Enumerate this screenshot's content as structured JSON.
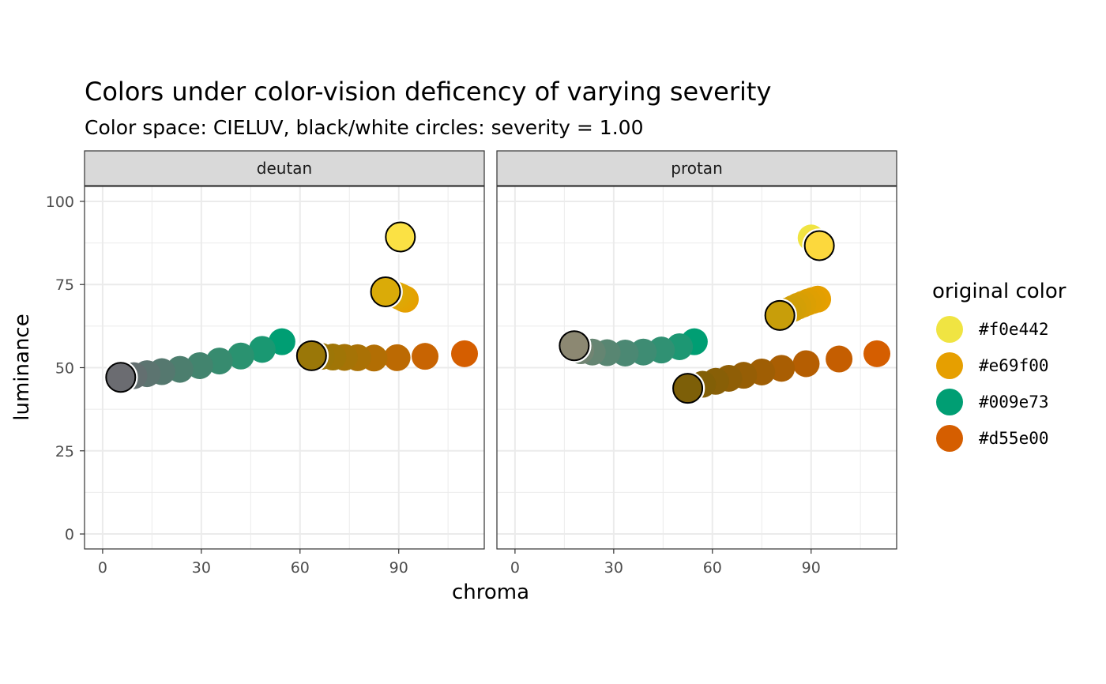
{
  "chart_data": {
    "type": "scatter",
    "title": "Colors under color-vision deficency of varying severity",
    "subtitle": "Color space: CIELUV, black/white circles: severity = 1.00",
    "xlabel": "chroma",
    "ylabel": "luminance",
    "xlim": [
      -5.5,
      116
    ],
    "ylim": [
      -4.5,
      104.5
    ],
    "x_ticks": [
      "0",
      "30",
      "60",
      "90"
    ],
    "y_ticks": [
      "0",
      "25",
      "50",
      "75",
      "100"
    ],
    "grid": true,
    "legend": {
      "title": "original color",
      "position": "right",
      "entries": [
        {
          "label": "#f0e442",
          "color": "#f0e442"
        },
        {
          "label": "#e69f00",
          "color": "#e69f00"
        },
        {
          "label": "#009e73",
          "color": "#009e73"
        },
        {
          "label": "#d55e00",
          "color": "#d55e00"
        }
      ]
    },
    "panels": [
      {
        "name": "deutan",
        "series": [
          {
            "original": "#f0e442",
            "marked": {
              "x": 90.5,
              "y": 89.3,
              "color": "#fbe144"
            },
            "points": [
              {
                "x": 90.5,
                "y": 89.3,
                "color": "#fbe144"
              }
            ]
          },
          {
            "original": "#e69f00",
            "marked": {
              "x": 86,
              "y": 72.8,
              "color": "#daab08"
            },
            "points": [
              {
                "x": 92,
                "y": 70.6,
                "color": "#e69f00"
              },
              {
                "x": 91.5,
                "y": 70.8,
                "color": "#e5a101"
              },
              {
                "x": 91,
                "y": 71.1,
                "color": "#e3a302"
              },
              {
                "x": 90.3,
                "y": 71.4,
                "color": "#e2a403"
              },
              {
                "x": 89.6,
                "y": 71.7,
                "color": "#e0a604"
              },
              {
                "x": 88.8,
                "y": 72.0,
                "color": "#dfa705"
              },
              {
                "x": 88.0,
                "y": 72.3,
                "color": "#dea806"
              },
              {
                "x": 87.0,
                "y": 72.6,
                "color": "#dca907"
              },
              {
                "x": 86,
                "y": 72.8,
                "color": "#daab08"
              }
            ]
          },
          {
            "original": "#009e73",
            "marked": {
              "x": 5.5,
              "y": 47.1,
              "color": "#6b6c71"
            },
            "points": [
              {
                "x": 54.5,
                "y": 57.8,
                "color": "#009e73"
              },
              {
                "x": 48.5,
                "y": 55.5,
                "color": "#1a9872"
              },
              {
                "x": 42.0,
                "y": 53.5,
                "color": "#2a9270"
              },
              {
                "x": 35.5,
                "y": 52.0,
                "color": "#378b6f"
              },
              {
                "x": 29.5,
                "y": 50.6,
                "color": "#42846e"
              },
              {
                "x": 23.5,
                "y": 49.5,
                "color": "#4c7e6e"
              },
              {
                "x": 18.0,
                "y": 48.8,
                "color": "#55786f"
              },
              {
                "x": 13.5,
                "y": 48.2,
                "color": "#5c7470"
              },
              {
                "x": 9.5,
                "y": 47.6,
                "color": "#636f70"
              },
              {
                "x": 5.5,
                "y": 47.1,
                "color": "#6b6c71"
              }
            ]
          },
          {
            "original": "#d55e00",
            "marked": {
              "x": 63.5,
              "y": 53.6,
              "color": "#9a7708"
            },
            "points": [
              {
                "x": 110,
                "y": 54.2,
                "color": "#d55e00"
              },
              {
                "x": 98,
                "y": 53.4,
                "color": "#c86402"
              },
              {
                "x": 89.5,
                "y": 53.0,
                "color": "#bc6a03"
              },
              {
                "x": 82.5,
                "y": 52.9,
                "color": "#b26e04"
              },
              {
                "x": 77.5,
                "y": 53.0,
                "color": "#aa7105"
              },
              {
                "x": 73.5,
                "y": 53.1,
                "color": "#a57306"
              },
              {
                "x": 70.0,
                "y": 53.2,
                "color": "#a07506"
              },
              {
                "x": 66.5,
                "y": 53.4,
                "color": "#9d7607"
              },
              {
                "x": 63.5,
                "y": 53.6,
                "color": "#9a7708"
              }
            ]
          }
        ]
      },
      {
        "name": "protan",
        "series": [
          {
            "original": "#f0e442",
            "marked": {
              "x": 92.5,
              "y": 86.7,
              "color": "#fcd83d"
            },
            "points": [
              {
                "x": 90,
                "y": 89.0,
                "color": "#f0e442"
              },
              {
                "x": 91.3,
                "y": 87.8,
                "color": "#f6de40"
              },
              {
                "x": 92.5,
                "y": 86.7,
                "color": "#fcd83d"
              }
            ]
          },
          {
            "original": "#e69f00",
            "marked": {
              "x": 80.5,
              "y": 65.7,
              "color": "#c89e0a"
            },
            "points": [
              {
                "x": 92,
                "y": 70.6,
                "color": "#e69f00"
              },
              {
                "x": 90.5,
                "y": 70.2,
                "color": "#e29f01"
              },
              {
                "x": 89,
                "y": 69.7,
                "color": "#df9f02"
              },
              {
                "x": 87.5,
                "y": 69.1,
                "color": "#db9f03"
              },
              {
                "x": 86,
                "y": 68.5,
                "color": "#d79f05"
              },
              {
                "x": 84.5,
                "y": 67.8,
                "color": "#d39f06"
              },
              {
                "x": 83,
                "y": 67.1,
                "color": "#d09f07"
              },
              {
                "x": 81.7,
                "y": 66.4,
                "color": "#cc9e09"
              },
              {
                "x": 80.5,
                "y": 65.7,
                "color": "#c89e0a"
              }
            ]
          },
          {
            "original": "#009e73",
            "marked": {
              "x": 18,
              "y": 56.6,
              "color": "#8c8872"
            },
            "points": [
              {
                "x": 54.5,
                "y": 57.8,
                "color": "#009e73"
              },
              {
                "x": 50,
                "y": 56.3,
                "color": "#1d9773"
              },
              {
                "x": 44.5,
                "y": 55.3,
                "color": "#309173"
              },
              {
                "x": 39,
                "y": 54.7,
                "color": "#3e8c73"
              },
              {
                "x": 33.5,
                "y": 54.4,
                "color": "#4b8873"
              },
              {
                "x": 28,
                "y": 54.5,
                "color": "#588672"
              },
              {
                "x": 23.5,
                "y": 54.7,
                "color": "#658572"
              },
              {
                "x": 20,
                "y": 55.1,
                "color": "#718472"
              },
              {
                "x": 17.5,
                "y": 55.6,
                "color": "#7c8572"
              },
              {
                "x": 18,
                "y": 56.6,
                "color": "#8c8872"
              }
            ]
          },
          {
            "original": "#d55e00",
            "marked": {
              "x": 52.5,
              "y": 43.8,
              "color": "#7d5f08"
            },
            "points": [
              {
                "x": 110,
                "y": 54.2,
                "color": "#d55e00"
              },
              {
                "x": 98.5,
                "y": 52.6,
                "color": "#c55e01"
              },
              {
                "x": 88.5,
                "y": 51.2,
                "color": "#b55e02"
              },
              {
                "x": 81,
                "y": 49.8,
                "color": "#a95e03"
              },
              {
                "x": 75,
                "y": 48.7,
                "color": "#9f5e04"
              },
              {
                "x": 69.5,
                "y": 47.7,
                "color": "#965e05"
              },
              {
                "x": 65,
                "y": 46.8,
                "color": "#8f5e06"
              },
              {
                "x": 61,
                "y": 45.9,
                "color": "#885f07"
              },
              {
                "x": 57,
                "y": 45.0,
                "color": "#825f07"
              },
              {
                "x": 52.5,
                "y": 43.8,
                "color": "#7d5f08"
              }
            ]
          }
        ]
      }
    ]
  }
}
